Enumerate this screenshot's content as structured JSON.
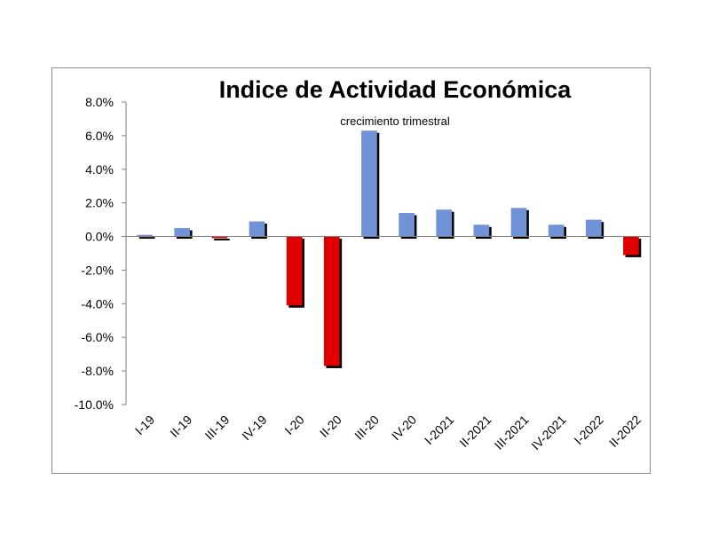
{
  "chart_data": {
    "type": "bar",
    "title": "Indice de Actividad Económica",
    "subtitle": "crecimiento trimestral",
    "xlabel": "",
    "ylabel": "",
    "categories": [
      "I-19",
      "II-19",
      "III-19",
      "IV-19",
      "I-20",
      "II-20",
      "III-20",
      "IV-20",
      "I-2021",
      "II-2021",
      "III-2021",
      "IV-2021",
      "I-2022",
      "II-2022"
    ],
    "values": [
      0.1,
      0.5,
      -0.1,
      0.9,
      -4.1,
      -7.7,
      6.3,
      1.4,
      1.6,
      0.7,
      1.7,
      0.7,
      1.0,
      -1.1
    ],
    "ylim": [
      -10,
      8
    ],
    "yticks": [
      8,
      6,
      4,
      2,
      0,
      -2,
      -4,
      -6,
      -8,
      -10
    ],
    "ytick_labels": [
      "8.0%",
      "6.0%",
      "4.0%",
      "2.0%",
      "0.0%",
      "-2.0%",
      "-4.0%",
      "-6.0%",
      "-8.0%",
      "-10.0%"
    ],
    "grid": false,
    "legend": "none",
    "colors": {
      "positive": "#6f93d6",
      "negative": "#e00000",
      "shadow": "#000000",
      "axis": "#7f7f7f"
    }
  }
}
